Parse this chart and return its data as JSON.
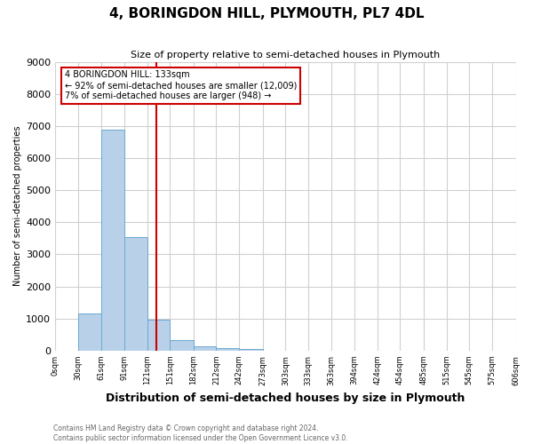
{
  "title": "4, BORINGDON HILL, PLYMOUTH, PL7 4DL",
  "subtitle": "Size of property relative to semi-detached houses in Plymouth",
  "xlabel": "Distribution of semi-detached houses by size in Plymouth",
  "ylabel": "Number of semi-detached properties",
  "bin_edges": [
    0,
    30,
    61,
    91,
    121,
    151,
    182,
    212,
    242,
    273,
    303,
    333,
    363,
    394,
    424,
    454,
    485,
    515,
    545,
    575,
    606
  ],
  "bar_heights": [
    0,
    1150,
    6900,
    3550,
    950,
    330,
    130,
    90,
    60,
    0,
    0,
    0,
    0,
    0,
    0,
    0,
    0,
    0,
    0,
    0
  ],
  "bar_color": "#b8d0e8",
  "bar_edge_color": "#6aaad4",
  "property_size": 133,
  "vline_color": "#cc0000",
  "ylim": [
    0,
    9000
  ],
  "annotation_text": "4 BORINGDON HILL: 133sqm\n← 92% of semi-detached houses are smaller (12,009)\n7% of semi-detached houses are larger (948) →",
  "annotation_box_color": "#ffffff",
  "annotation_box_edge_color": "#cc0000",
  "footer_line1": "Contains HM Land Registry data © Crown copyright and database right 2024.",
  "footer_line2": "Contains public sector information licensed under the Open Government Licence v3.0.",
  "tick_labels": [
    "0sqm",
    "30sqm",
    "61sqm",
    "91sqm",
    "121sqm",
    "151sqm",
    "182sqm",
    "212sqm",
    "242sqm",
    "273sqm",
    "303sqm",
    "333sqm",
    "363sqm",
    "394sqm",
    "424sqm",
    "454sqm",
    "485sqm",
    "515sqm",
    "545sqm",
    "575sqm",
    "606sqm"
  ],
  "background_color": "#ffffff",
  "grid_color": "#d0d0d0",
  "title_fontsize": 11,
  "subtitle_fontsize": 8,
  "ylabel_fontsize": 7,
  "xlabel_fontsize": 9,
  "ytick_fontsize": 8,
  "xtick_fontsize": 6,
  "annotation_fontsize": 7,
  "footer_fontsize": 5.5
}
